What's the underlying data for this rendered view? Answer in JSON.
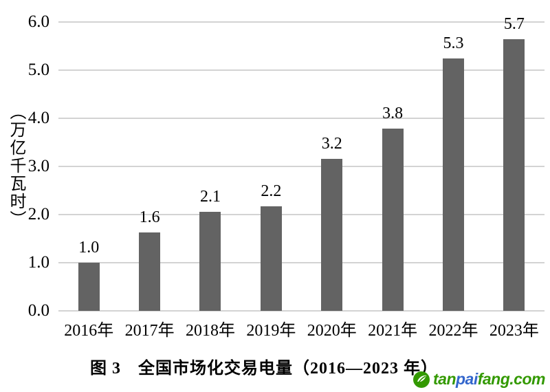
{
  "chart_data": {
    "type": "bar",
    "title": "图 3　全国市场化交易电量（2016—2023 年）",
    "xlabel": "",
    "ylabel": "（万亿千瓦时）",
    "categories": [
      "2016年",
      "2017年",
      "2018年",
      "2019年",
      "2020年",
      "2021年",
      "2022年",
      "2023年"
    ],
    "values": [
      1.0,
      1.6,
      2.1,
      2.2,
      3.2,
      3.8,
      5.3,
      5.7
    ],
    "value_labels": [
      "1.0",
      "1.6",
      "2.1",
      "2.2",
      "3.2",
      "3.8",
      "5.3",
      "5.7"
    ],
    "bar_heights": [
      1.0,
      1.63,
      2.06,
      2.17,
      3.16,
      3.78,
      5.25,
      5.65
    ],
    "ylim": [
      0,
      6
    ],
    "yticks": [
      "0.0",
      "1.0",
      "2.0",
      "3.0",
      "4.0",
      "5.0",
      "6.0"
    ],
    "grid": "horizontal",
    "legend": "none",
    "bar_color": "#636363",
    "gridline_color": "#d3d3d3",
    "text_color": "#000000"
  },
  "watermark": {
    "parts": [
      {
        "text": "tan",
        "color": "#339900"
      },
      {
        "text": "pai",
        "color": "#3366cc"
      },
      {
        "text": "fang.com",
        "color": "#339900"
      }
    ],
    "logo_color": "#339900"
  }
}
